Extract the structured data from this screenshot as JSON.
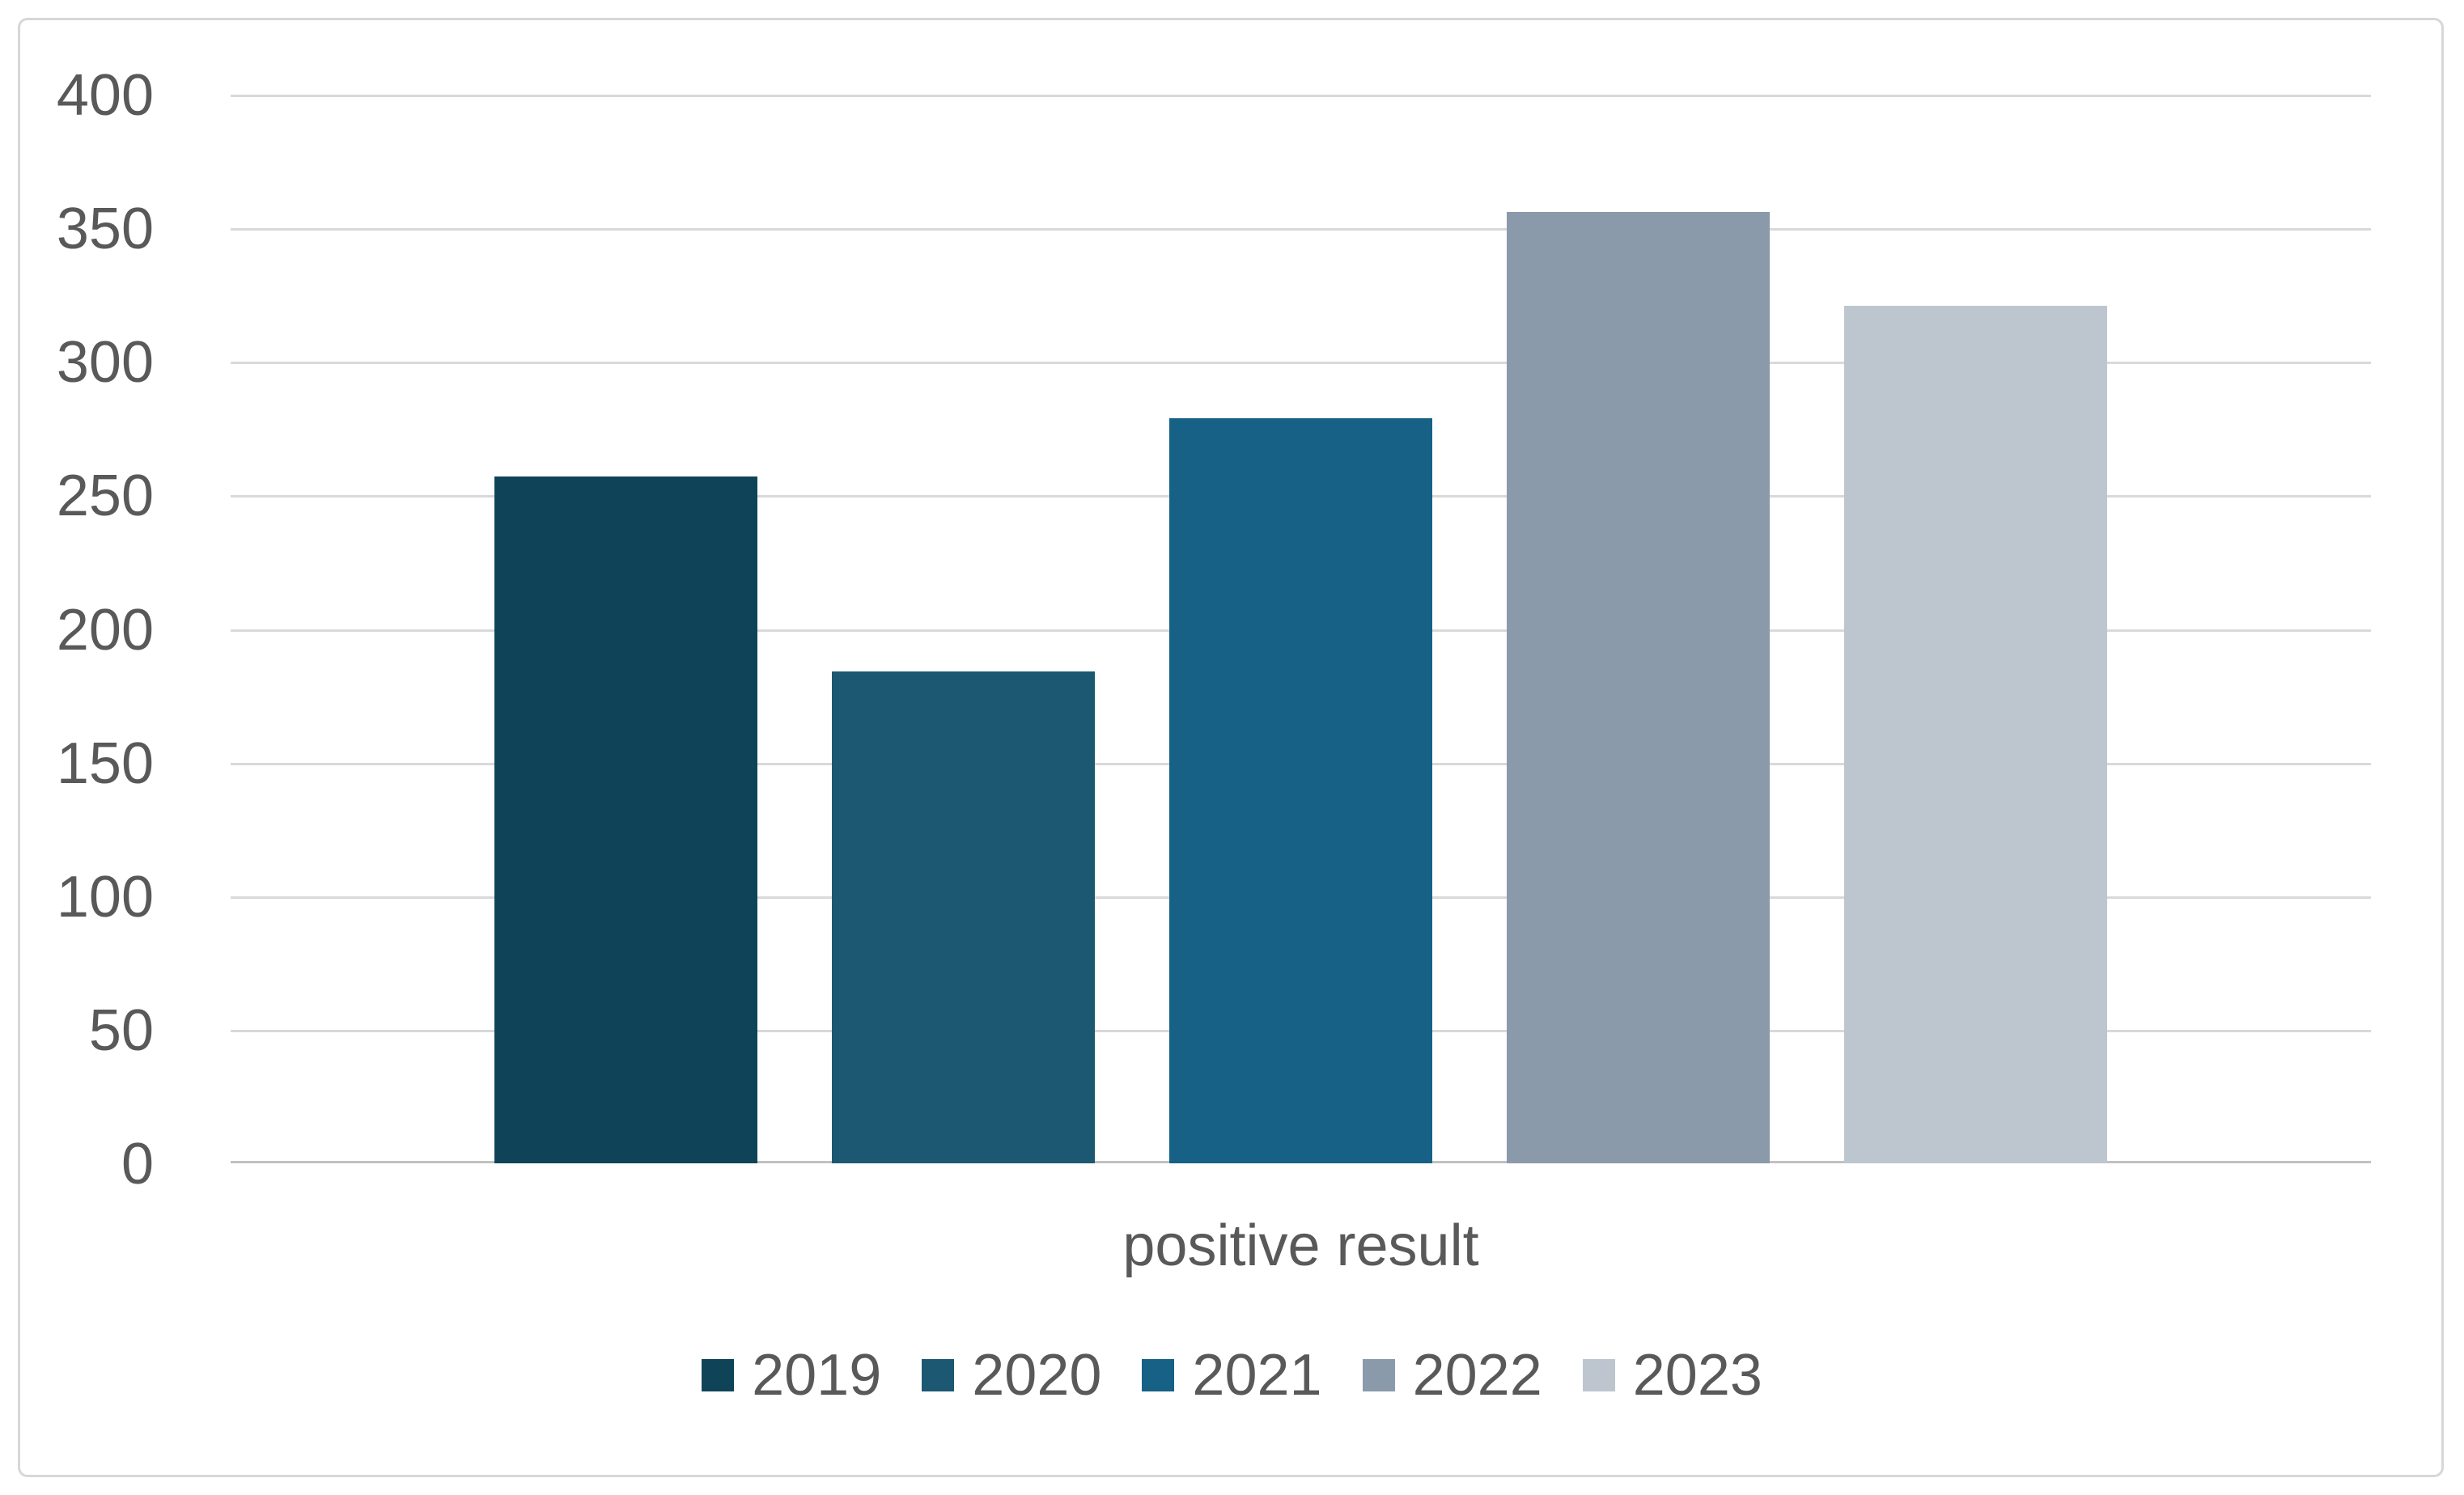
{
  "chart_data": {
    "type": "bar",
    "title": "",
    "xlabel": "",
    "ylabel": "",
    "categories": [
      "positive result"
    ],
    "series": [
      {
        "name": "2019",
        "values": [
          257
        ],
        "color": "#0F4458"
      },
      {
        "name": "2020",
        "values": [
          184
        ],
        "color": "#1C5871"
      },
      {
        "name": "2021",
        "values": [
          279
        ],
        "color": "#166185"
      },
      {
        "name": "2022",
        "values": [
          356
        ],
        "color": "#8B9AAB"
      },
      {
        "name": "2023",
        "values": [
          321
        ],
        "color": "#BDC6CE"
      }
    ],
    "ylim": [
      0,
      400
    ],
    "ytick_step": 50,
    "yticks": [
      400,
      350,
      300,
      250,
      200,
      150,
      100,
      50,
      0
    ],
    "grid": true,
    "legend_position": "bottom"
  },
  "style": {
    "background_color": "#FFFFFF",
    "frame_border_color": "#D7D7D7",
    "gridline_color": "#D9D9D9",
    "axis_line_color": "#C1C1C1",
    "text_color": "#595959"
  }
}
